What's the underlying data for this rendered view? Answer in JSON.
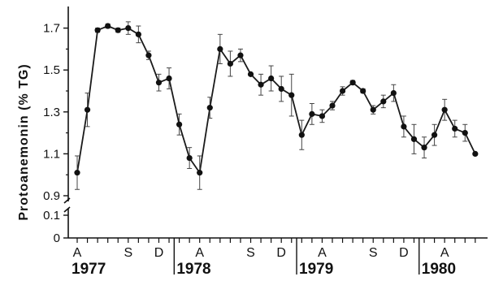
{
  "chart_data": {
    "type": "line",
    "title": "",
    "xlabel": "",
    "ylabel": "Protoanemonin (% TG)",
    "ylim": [
      0.9,
      1.8
    ],
    "y_ticks_upper": [
      "0.9",
      "1.1",
      "1.3",
      "1.5",
      "1.7"
    ],
    "y_ticks_lower": [
      "0",
      "0.1"
    ],
    "axis_break": true,
    "grid": false,
    "legend": "none",
    "series": [
      {
        "values": [
          1.01,
          1.31,
          1.69,
          1.71,
          1.69,
          1.7,
          1.67,
          1.57,
          1.44,
          1.46,
          1.24,
          1.08,
          1.01,
          1.32,
          1.6,
          1.53,
          1.57,
          1.48,
          1.43,
          1.46,
          1.41,
          1.38,
          1.19,
          1.29,
          1.28,
          1.33,
          1.4,
          1.44,
          1.4,
          1.31,
          1.35,
          1.39,
          1.23,
          1.17,
          1.13,
          1.19,
          1.31,
          1.22,
          1.2,
          1.1
        ],
        "errors": [
          0.08,
          0.08,
          0.01,
          0.01,
          0.01,
          0.03,
          0.04,
          0.02,
          0.04,
          0.05,
          0.05,
          0.05,
          0.08,
          0.05,
          0.07,
          0.06,
          0.03,
          0.0,
          0.05,
          0.06,
          0.06,
          0.1,
          0.07,
          0.05,
          0.03,
          0.02,
          0.02,
          0.01,
          0.01,
          0.02,
          0.03,
          0.04,
          0.05,
          0.07,
          0.05,
          0.05,
          0.05,
          0.04,
          0.04,
          0.0
        ]
      }
    ],
    "month_labels": [
      {
        "label": "A",
        "index": 0
      },
      {
        "label": "S",
        "index": 5
      },
      {
        "label": "D",
        "index": 8
      },
      {
        "label": "A",
        "index": 12
      },
      {
        "label": "S",
        "index": 17
      },
      {
        "label": "D",
        "index": 20
      },
      {
        "label": "A",
        "index": 24
      },
      {
        "label": "S",
        "index": 29
      },
      {
        "label": "D",
        "index": 32
      },
      {
        "label": "A",
        "index": 36
      }
    ],
    "years": [
      "1977",
      "1978",
      "1979",
      "1980"
    ],
    "colors": {
      "line": "#1a1a1a",
      "marker": "#111111",
      "axis": "#111111"
    }
  }
}
